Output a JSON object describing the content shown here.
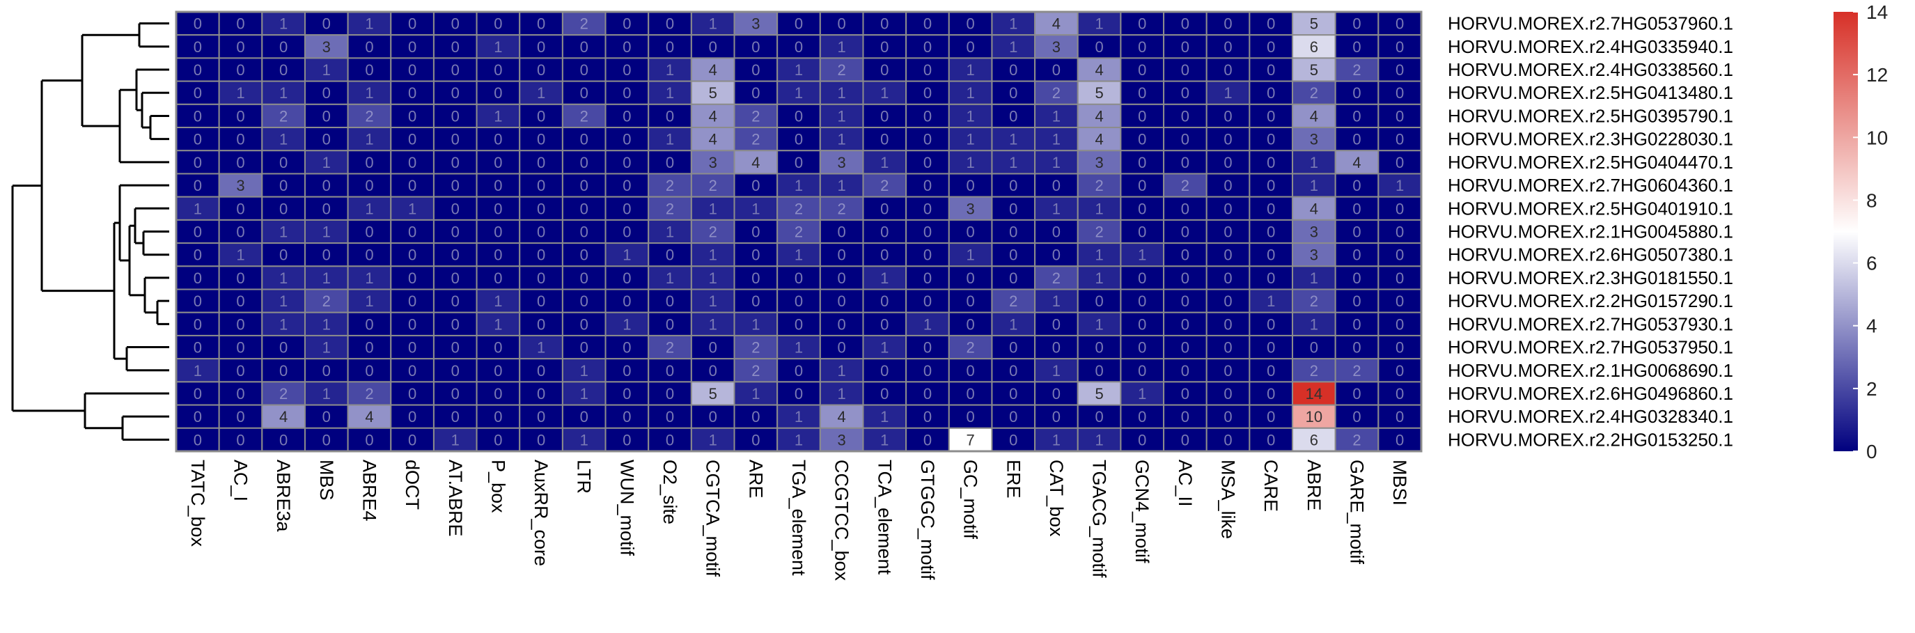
{
  "chart_data": {
    "type": "heatmap",
    "title": "",
    "xlabel": "",
    "ylabel": "",
    "columns": [
      "TATC_box",
      "AC_I",
      "ABRE3a",
      "MBS",
      "ABRE4",
      "dOCT",
      "AT.ABRE",
      "P_box",
      "AuxRR_core",
      "LTR",
      "WUN_motif",
      "O2_site",
      "CGTCA_motif",
      "ARE",
      "TGA_element",
      "CCGTCC_box",
      "TCA_element",
      "GTGGC_motif",
      "GC_motif",
      "ERE",
      "CAT_box",
      "TGACG_motif",
      "GCN4_motif",
      "AC_II",
      "MSA_like",
      "CARE",
      "ABRE",
      "GARE_motif",
      "MBSI"
    ],
    "rows": [
      "HORVU.MOREX.r2.7HG0537960.1",
      "HORVU.MOREX.r2.4HG0335940.1",
      "HORVU.MOREX.r2.4HG0338560.1",
      "HORVU.MOREX.r2.5HG0413480.1",
      "HORVU.MOREX.r2.5HG0395790.1",
      "HORVU.MOREX.r2.3HG0228030.1",
      "HORVU.MOREX.r2.5HG0404470.1",
      "HORVU.MOREX.r2.7HG0604360.1",
      "HORVU.MOREX.r2.5HG0401910.1",
      "HORVU.MOREX.r2.1HG0045880.1",
      "HORVU.MOREX.r2.6HG0507380.1",
      "HORVU.MOREX.r2.3HG0181550.1",
      "HORVU.MOREX.r2.2HG0157290.1",
      "HORVU.MOREX.r2.7HG0537930.1",
      "HORVU.MOREX.r2.7HG0537950.1",
      "HORVU.MOREX.r2.1HG0068690.1",
      "HORVU.MOREX.r2.6HG0496860.1",
      "HORVU.MOREX.r2.4HG0328340.1",
      "HORVU.MOREX.r2.2HG0153250.1"
    ],
    "values": [
      [
        0,
        0,
        1,
        0,
        1,
        0,
        0,
        0,
        0,
        2,
        0,
        0,
        1,
        3,
        0,
        0,
        0,
        0,
        0,
        1,
        4,
        1,
        0,
        0,
        0,
        0,
        5,
        0,
        0
      ],
      [
        0,
        0,
        0,
        3,
        0,
        0,
        0,
        1,
        0,
        0,
        0,
        0,
        0,
        0,
        0,
        1,
        0,
        0,
        0,
        1,
        3,
        0,
        0,
        0,
        0,
        0,
        6,
        0,
        0
      ],
      [
        0,
        0,
        0,
        1,
        0,
        0,
        0,
        0,
        0,
        0,
        0,
        1,
        4,
        0,
        1,
        2,
        0,
        0,
        1,
        0,
        0,
        4,
        0,
        0,
        0,
        0,
        5,
        2,
        0
      ],
      [
        0,
        1,
        1,
        0,
        1,
        0,
        0,
        0,
        1,
        0,
        0,
        1,
        5,
        0,
        1,
        1,
        1,
        0,
        1,
        0,
        2,
        5,
        0,
        0,
        1,
        0,
        2,
        0,
        0
      ],
      [
        0,
        0,
        2,
        0,
        2,
        0,
        0,
        1,
        0,
        2,
        0,
        0,
        4,
        2,
        0,
        1,
        0,
        0,
        1,
        0,
        1,
        4,
        0,
        0,
        0,
        0,
        4,
        0,
        0
      ],
      [
        0,
        0,
        1,
        0,
        1,
        0,
        0,
        0,
        0,
        0,
        0,
        1,
        4,
        2,
        0,
        1,
        0,
        0,
        1,
        1,
        1,
        4,
        0,
        0,
        0,
        0,
        3,
        0,
        0
      ],
      [
        0,
        0,
        0,
        1,
        0,
        0,
        0,
        0,
        0,
        0,
        0,
        0,
        3,
        4,
        0,
        3,
        1,
        0,
        1,
        1,
        1,
        3,
        0,
        0,
        0,
        0,
        1,
        4,
        0
      ],
      [
        0,
        3,
        0,
        0,
        0,
        0,
        0,
        0,
        0,
        0,
        0,
        2,
        2,
        0,
        1,
        1,
        2,
        0,
        0,
        0,
        0,
        2,
        0,
        2,
        0,
        0,
        1,
        0,
        1
      ],
      [
        1,
        0,
        0,
        0,
        1,
        1,
        0,
        0,
        0,
        0,
        0,
        2,
        1,
        1,
        2,
        2,
        0,
        0,
        3,
        0,
        1,
        1,
        0,
        0,
        0,
        0,
        4,
        0,
        0
      ],
      [
        0,
        0,
        1,
        1,
        0,
        0,
        0,
        0,
        0,
        0,
        0,
        1,
        2,
        0,
        2,
        0,
        0,
        0,
        0,
        0,
        0,
        2,
        0,
        0,
        0,
        0,
        3,
        0,
        0
      ],
      [
        0,
        1,
        0,
        0,
        0,
        0,
        0,
        0,
        0,
        0,
        1,
        0,
        1,
        0,
        1,
        0,
        0,
        0,
        1,
        0,
        0,
        1,
        1,
        0,
        0,
        0,
        3,
        0,
        0
      ],
      [
        0,
        0,
        1,
        1,
        1,
        0,
        0,
        0,
        0,
        0,
        0,
        1,
        1,
        0,
        0,
        0,
        1,
        0,
        0,
        0,
        2,
        1,
        0,
        0,
        0,
        0,
        1,
        0,
        0
      ],
      [
        0,
        0,
        1,
        2,
        1,
        0,
        0,
        1,
        0,
        0,
        0,
        0,
        1,
        0,
        0,
        0,
        0,
        0,
        0,
        2,
        1,
        0,
        0,
        0,
        0,
        1,
        2,
        0,
        0
      ],
      [
        0,
        0,
        1,
        1,
        0,
        0,
        0,
        1,
        0,
        0,
        1,
        0,
        1,
        1,
        0,
        0,
        0,
        1,
        0,
        1,
        0,
        1,
        0,
        0,
        0,
        0,
        1,
        0,
        0
      ],
      [
        0,
        0,
        0,
        1,
        0,
        0,
        0,
        0,
        1,
        0,
        0,
        2,
        0,
        2,
        1,
        0,
        1,
        0,
        2,
        0,
        0,
        0,
        0,
        0,
        0,
        0,
        0,
        0,
        0
      ],
      [
        1,
        0,
        0,
        0,
        0,
        0,
        0,
        0,
        0,
        1,
        0,
        0,
        0,
        2,
        0,
        1,
        0,
        0,
        0,
        0,
        1,
        0,
        0,
        0,
        0,
        0,
        2,
        2,
        0
      ],
      [
        0,
        0,
        2,
        1,
        2,
        0,
        0,
        0,
        0,
        1,
        0,
        0,
        5,
        1,
        0,
        1,
        0,
        0,
        0,
        0,
        0,
        5,
        1,
        0,
        0,
        0,
        14,
        0,
        0
      ],
      [
        0,
        0,
        4,
        0,
        4,
        0,
        0,
        0,
        0,
        0,
        0,
        0,
        0,
        0,
        1,
        4,
        1,
        0,
        0,
        0,
        0,
        0,
        0,
        0,
        0,
        0,
        10,
        0,
        0
      ],
      [
        0,
        0,
        0,
        0,
        0,
        0,
        1,
        0,
        0,
        1,
        0,
        0,
        1,
        0,
        1,
        3,
        1,
        0,
        7,
        0,
        1,
        1,
        0,
        0,
        0,
        0,
        6,
        2,
        0
      ]
    ],
    "row_order_leaves": [
      0,
      1,
      2,
      3,
      4,
      5,
      6,
      7,
      8,
      9,
      10,
      11,
      12,
      13,
      14,
      15,
      16,
      17,
      18
    ],
    "color_scale": {
      "min": 0,
      "max": 14,
      "low_color": "#00007f",
      "mid_color": "#ffffff",
      "high_color": "#d73027",
      "mid_value": 7,
      "ticks": [
        0,
        2,
        4,
        6,
        8,
        10,
        12,
        14
      ]
    },
    "cell_border_color": "#8c8c8c",
    "legend_position": "right",
    "row_dendrogram": true,
    "show_cell_values": true
  }
}
